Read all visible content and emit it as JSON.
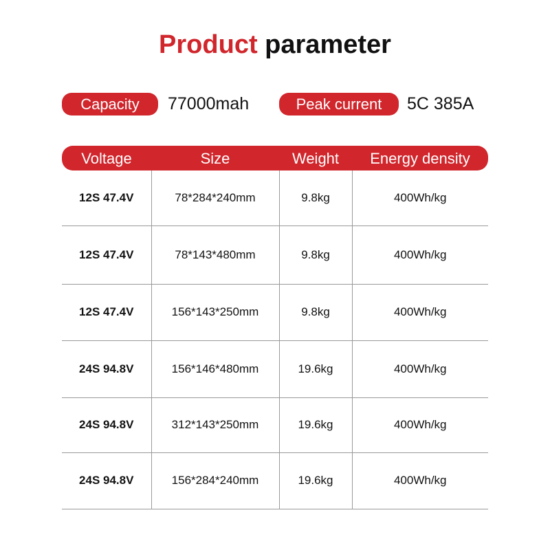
{
  "title": {
    "part1": "Product",
    "part2": "parameter"
  },
  "specs": {
    "capacity_label": "Capacity",
    "capacity_value": "77000mah",
    "peak_label": "Peak current",
    "peak_value": "5C 385A"
  },
  "colors": {
    "accent": "#d0262c"
  },
  "table": {
    "headers": [
      "Voltage",
      "Size",
      "Weight",
      "Energy density"
    ],
    "rows": [
      [
        "12S 47.4V",
        "78*284*240mm",
        "9.8kg",
        "400Wh/kg"
      ],
      [
        "12S 47.4V",
        "78*143*480mm",
        "9.8kg",
        "400Wh/kg"
      ],
      [
        "12S 47.4V",
        "156*143*250mm",
        "9.8kg",
        "400Wh/kg"
      ],
      [
        "24S 94.8V",
        "156*146*480mm",
        "19.6kg",
        "400Wh/kg"
      ],
      [
        "24S 94.8V",
        "312*143*250mm",
        "19.6kg",
        "400Wh/kg"
      ],
      [
        "24S 94.8V",
        "156*284*240mm",
        "19.6kg",
        "400Wh/kg"
      ]
    ]
  }
}
